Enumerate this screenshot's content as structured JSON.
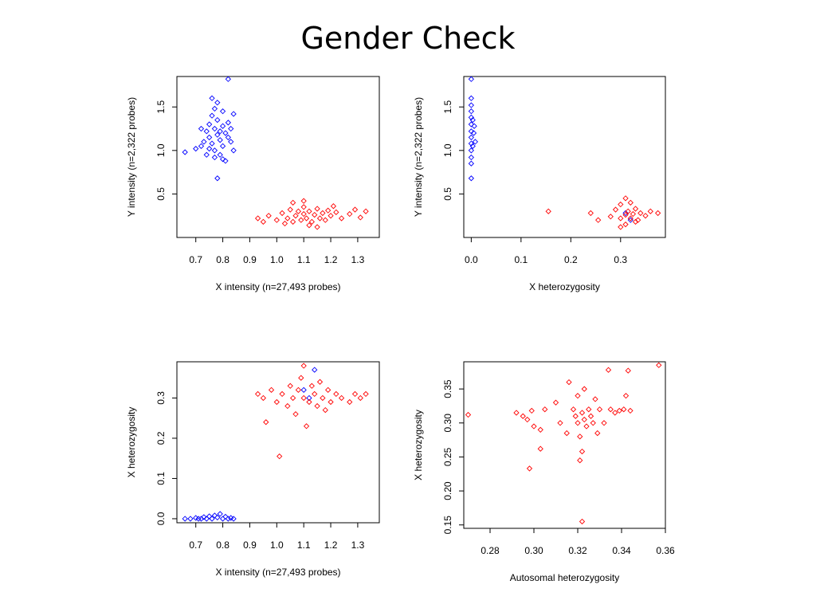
{
  "title": "Gender Check",
  "colors": {
    "male": "#0000ff",
    "female": "#ff0000",
    "axis": "#000000"
  },
  "chart_data": [
    {
      "type": "scatter",
      "title": "",
      "xlabel": "X intensity (n=27,493 probes)",
      "ylabel": "Y intensity (n=2,322 probes)",
      "xlim": [
        0.63,
        1.38
      ],
      "ylim": [
        0.0,
        1.85
      ],
      "xticks": [
        "0.7",
        "0.8",
        "0.9",
        "1.0",
        "1.1",
        "1.2",
        "1.3"
      ],
      "yticks": [
        "0.5",
        "1.0",
        "1.5"
      ],
      "series": [
        {
          "color": "male",
          "points": [
            [
              0.66,
              0.98
            ],
            [
              0.7,
              1.02
            ],
            [
              0.72,
              1.05
            ],
            [
              0.73,
              1.1
            ],
            [
              0.74,
              1.22
            ],
            [
              0.75,
              1.15
            ],
            [
              0.75,
              1.3
            ],
            [
              0.76,
              1.08
            ],
            [
              0.76,
              1.4
            ],
            [
              0.77,
              1.25
            ],
            [
              0.77,
              1.0
            ],
            [
              0.77,
              0.92
            ],
            [
              0.78,
              1.18
            ],
            [
              0.78,
              1.35
            ],
            [
              0.78,
              1.55
            ],
            [
              0.79,
              1.12
            ],
            [
              0.79,
              0.95
            ],
            [
              0.8,
              1.28
            ],
            [
              0.8,
              1.05
            ],
            [
              0.8,
              1.45
            ],
            [
              0.81,
              1.2
            ],
            [
              0.81,
              0.88
            ],
            [
              0.82,
              1.15
            ],
            [
              0.82,
              1.32
            ],
            [
              0.83,
              1.1
            ],
            [
              0.84,
              1.42
            ],
            [
              0.84,
              1.0
            ],
            [
              0.76,
              1.6
            ],
            [
              0.78,
              0.68
            ],
            [
              0.82,
              1.82
            ],
            [
              0.74,
              0.95
            ],
            [
              0.72,
              1.25
            ],
            [
              0.77,
              1.48
            ],
            [
              0.79,
              1.22
            ],
            [
              0.75,
              1.02
            ],
            [
              0.8,
              0.9
            ],
            [
              0.83,
              1.25
            ]
          ]
        },
        {
          "color": "female",
          "points": [
            [
              0.93,
              0.22
            ],
            [
              0.95,
              0.18
            ],
            [
              0.97,
              0.25
            ],
            [
              1.0,
              0.2
            ],
            [
              1.02,
              0.28
            ],
            [
              1.04,
              0.22
            ],
            [
              1.05,
              0.32
            ],
            [
              1.06,
              0.18
            ],
            [
              1.07,
              0.25
            ],
            [
              1.08,
              0.3
            ],
            [
              1.09,
              0.2
            ],
            [
              1.1,
              0.27
            ],
            [
              1.1,
              0.35
            ],
            [
              1.11,
              0.22
            ],
            [
              1.12,
              0.3
            ],
            [
              1.13,
              0.18
            ],
            [
              1.14,
              0.26
            ],
            [
              1.15,
              0.33
            ],
            [
              1.16,
              0.22
            ],
            [
              1.17,
              0.28
            ],
            [
              1.18,
              0.2
            ],
            [
              1.19,
              0.31
            ],
            [
              1.2,
              0.25
            ],
            [
              1.22,
              0.29
            ],
            [
              1.24,
              0.22
            ],
            [
              1.27,
              0.27
            ],
            [
              1.29,
              0.32
            ],
            [
              1.31,
              0.23
            ],
            [
              1.33,
              0.3
            ],
            [
              1.1,
              0.42
            ],
            [
              1.12,
              0.14
            ],
            [
              1.06,
              0.4
            ],
            [
              1.15,
              0.12
            ],
            [
              1.03,
              0.16
            ],
            [
              1.21,
              0.36
            ]
          ]
        }
      ]
    },
    {
      "type": "scatter",
      "title": "",
      "xlabel": "X heterozygosity",
      "ylabel": "Y intensity (n=2,322 probes)",
      "xlim": [
        -0.015,
        0.39
      ],
      "ylim": [
        0.0,
        1.85
      ],
      "xticks": [
        "0.0",
        "0.1",
        "0.2",
        "0.3"
      ],
      "yticks": [
        "0.5",
        "1.0",
        "1.5"
      ],
      "series": [
        {
          "color": "male",
          "points": [
            [
              0.0,
              0.68
            ],
            [
              0.0,
              0.85
            ],
            [
              0.0,
              0.92
            ],
            [
              0.0,
              1.0
            ],
            [
              0.0,
              1.08
            ],
            [
              0.0,
              1.15
            ],
            [
              0.0,
              1.22
            ],
            [
              0.0,
              1.3
            ],
            [
              0.0,
              1.38
            ],
            [
              0.0,
              1.45
            ],
            [
              0.0,
              1.52
            ],
            [
              0.0,
              1.6
            ],
            [
              0.0,
              1.82
            ],
            [
              0.003,
              1.05
            ],
            [
              0.005,
              1.2
            ],
            [
              0.003,
              1.35
            ],
            [
              0.008,
              1.1
            ],
            [
              0.006,
              1.28
            ],
            [
              0.31,
              0.28
            ],
            [
              0.32,
              0.2
            ]
          ]
        },
        {
          "color": "female",
          "points": [
            [
              0.155,
              0.3
            ],
            [
              0.24,
              0.28
            ],
            [
              0.255,
              0.2
            ],
            [
              0.28,
              0.24
            ],
            [
              0.29,
              0.32
            ],
            [
              0.3,
              0.22
            ],
            [
              0.3,
              0.38
            ],
            [
              0.31,
              0.26
            ],
            [
              0.31,
              0.15
            ],
            [
              0.315,
              0.3
            ],
            [
              0.32,
              0.22
            ],
            [
              0.32,
              0.4
            ],
            [
              0.325,
              0.27
            ],
            [
              0.33,
              0.33
            ],
            [
              0.335,
              0.2
            ],
            [
              0.34,
              0.28
            ],
            [
              0.35,
              0.25
            ],
            [
              0.36,
              0.3
            ],
            [
              0.375,
              0.28
            ],
            [
              0.3,
              0.12
            ],
            [
              0.31,
              0.45
            ],
            [
              0.33,
              0.18
            ]
          ]
        }
      ]
    },
    {
      "type": "scatter",
      "title": "",
      "xlabel": "X intensity (n=27,493 probes)",
      "ylabel": "X heterozygosity",
      "xlim": [
        0.63,
        1.38
      ],
      "ylim": [
        -0.01,
        0.39
      ],
      "xticks": [
        "0.7",
        "0.8",
        "0.9",
        "1.0",
        "1.1",
        "1.2",
        "1.3"
      ],
      "yticks": [
        "0.0",
        "0.1",
        "0.2",
        "0.3"
      ],
      "series": [
        {
          "color": "male",
          "points": [
            [
              0.66,
              0.0
            ],
            [
              0.68,
              0.0
            ],
            [
              0.7,
              0.002
            ],
            [
              0.71,
              0.0
            ],
            [
              0.72,
              0.0
            ],
            [
              0.73,
              0.004
            ],
            [
              0.74,
              0.0
            ],
            [
              0.75,
              0.006
            ],
            [
              0.76,
              0.0
            ],
            [
              0.77,
              0.008
            ],
            [
              0.78,
              0.003
            ],
            [
              0.79,
              0.012
            ],
            [
              0.8,
              0.0
            ],
            [
              0.81,
              0.005
            ],
            [
              0.82,
              0.0
            ],
            [
              0.83,
              0.002
            ],
            [
              0.84,
              0.0
            ],
            [
              1.1,
              0.32
            ],
            [
              1.12,
              0.3
            ],
            [
              1.14,
              0.37
            ]
          ]
        },
        {
          "color": "female",
          "points": [
            [
              0.93,
              0.31
            ],
            [
              0.95,
              0.3
            ],
            [
              0.96,
              0.24
            ],
            [
              0.98,
              0.32
            ],
            [
              1.0,
              0.29
            ],
            [
              1.01,
              0.155
            ],
            [
              1.02,
              0.31
            ],
            [
              1.04,
              0.28
            ],
            [
              1.05,
              0.33
            ],
            [
              1.06,
              0.3
            ],
            [
              1.07,
              0.26
            ],
            [
              1.08,
              0.32
            ],
            [
              1.09,
              0.35
            ],
            [
              1.1,
              0.3
            ],
            [
              1.1,
              0.38
            ],
            [
              1.11,
              0.23
            ],
            [
              1.12,
              0.29
            ],
            [
              1.13,
              0.33
            ],
            [
              1.14,
              0.31
            ],
            [
              1.15,
              0.28
            ],
            [
              1.16,
              0.34
            ],
            [
              1.17,
              0.3
            ],
            [
              1.18,
              0.27
            ],
            [
              1.19,
              0.32
            ],
            [
              1.2,
              0.29
            ],
            [
              1.22,
              0.31
            ],
            [
              1.24,
              0.3
            ],
            [
              1.27,
              0.29
            ],
            [
              1.29,
              0.31
            ],
            [
              1.31,
              0.3
            ],
            [
              1.33,
              0.31
            ]
          ]
        }
      ]
    },
    {
      "type": "scatter",
      "title": "",
      "xlabel": "Autosomal heterozygosity",
      "ylabel": "X heterozygosity",
      "xlim": [
        0.268,
        0.36
      ],
      "ylim": [
        0.145,
        0.39
      ],
      "xticks": [
        "0.28",
        "0.30",
        "0.32",
        "0.34",
        "0.36"
      ],
      "yticks": [
        "0.15",
        "0.20",
        "0.25",
        "0.30",
        "0.35"
      ],
      "series": [
        {
          "color": "female",
          "points": [
            [
              0.27,
              0.312
            ],
            [
              0.292,
              0.315
            ],
            [
              0.295,
              0.31
            ],
            [
              0.297,
              0.305
            ],
            [
              0.299,
              0.318
            ],
            [
              0.3,
              0.295
            ],
            [
              0.303,
              0.29
            ],
            [
              0.305,
              0.32
            ],
            [
              0.298,
              0.233
            ],
            [
              0.303,
              0.262
            ],
            [
              0.31,
              0.33
            ],
            [
              0.312,
              0.3
            ],
            [
              0.315,
              0.285
            ],
            [
              0.316,
              0.36
            ],
            [
              0.318,
              0.32
            ],
            [
              0.319,
              0.31
            ],
            [
              0.32,
              0.3
            ],
            [
              0.32,
              0.34
            ],
            [
              0.321,
              0.28
            ],
            [
              0.321,
              0.245
            ],
            [
              0.322,
              0.315
            ],
            [
              0.322,
              0.258
            ],
            [
              0.323,
              0.305
            ],
            [
              0.323,
              0.35
            ],
            [
              0.324,
              0.295
            ],
            [
              0.325,
              0.32
            ],
            [
              0.326,
              0.31
            ],
            [
              0.327,
              0.3
            ],
            [
              0.328,
              0.335
            ],
            [
              0.329,
              0.285
            ],
            [
              0.33,
              0.32
            ],
            [
              0.332,
              0.3
            ],
            [
              0.334,
              0.378
            ],
            [
              0.335,
              0.32
            ],
            [
              0.337,
              0.315
            ],
            [
              0.339,
              0.318
            ],
            [
              0.341,
              0.32
            ],
            [
              0.342,
              0.34
            ],
            [
              0.343,
              0.377
            ],
            [
              0.344,
              0.318
            ],
            [
              0.357,
              0.385
            ],
            [
              0.322,
              0.155
            ]
          ]
        }
      ]
    }
  ]
}
